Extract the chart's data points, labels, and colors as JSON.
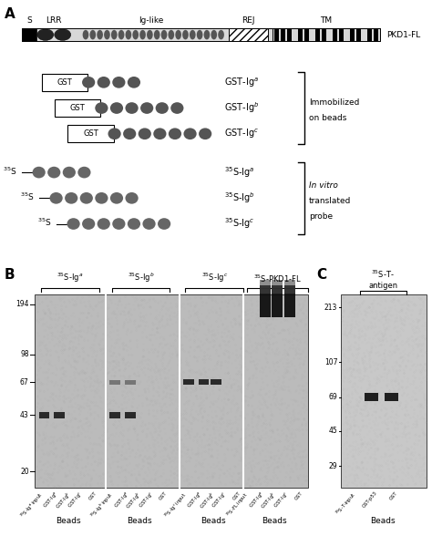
{
  "fig_w": 4.74,
  "fig_h": 5.88,
  "panel_A_label": "A",
  "panel_B_label": "B",
  "panel_C_label": "C",
  "domain_labels": [
    "S",
    "LRR",
    "Ig-like",
    "REJ",
    "TM"
  ],
  "pkd1_label": "PKD1-FL",
  "gst_labels": [
    "GST-Ig$^a$",
    "GST-Ig$^b$",
    "GST-Ig$^c$"
  ],
  "s35_probe_labels": [
    "$^{35}$S-Ig$^a$",
    "$^{35}$S-Ig$^b$",
    "$^{35}$S-Ig$^c$"
  ],
  "immobilized_text": [
    "Immobilized",
    "on beads"
  ],
  "in_vitro_text": [
    "In vitro",
    "translated",
    "probe"
  ],
  "gel_B_mw": [
    194,
    98,
    67,
    43,
    20
  ],
  "gel_C_mw": [
    213,
    107,
    69,
    45,
    29
  ],
  "beads_label": "Beads",
  "gel_bg": "#bbbbbb",
  "gel_C_bg": "#c8c8c8"
}
